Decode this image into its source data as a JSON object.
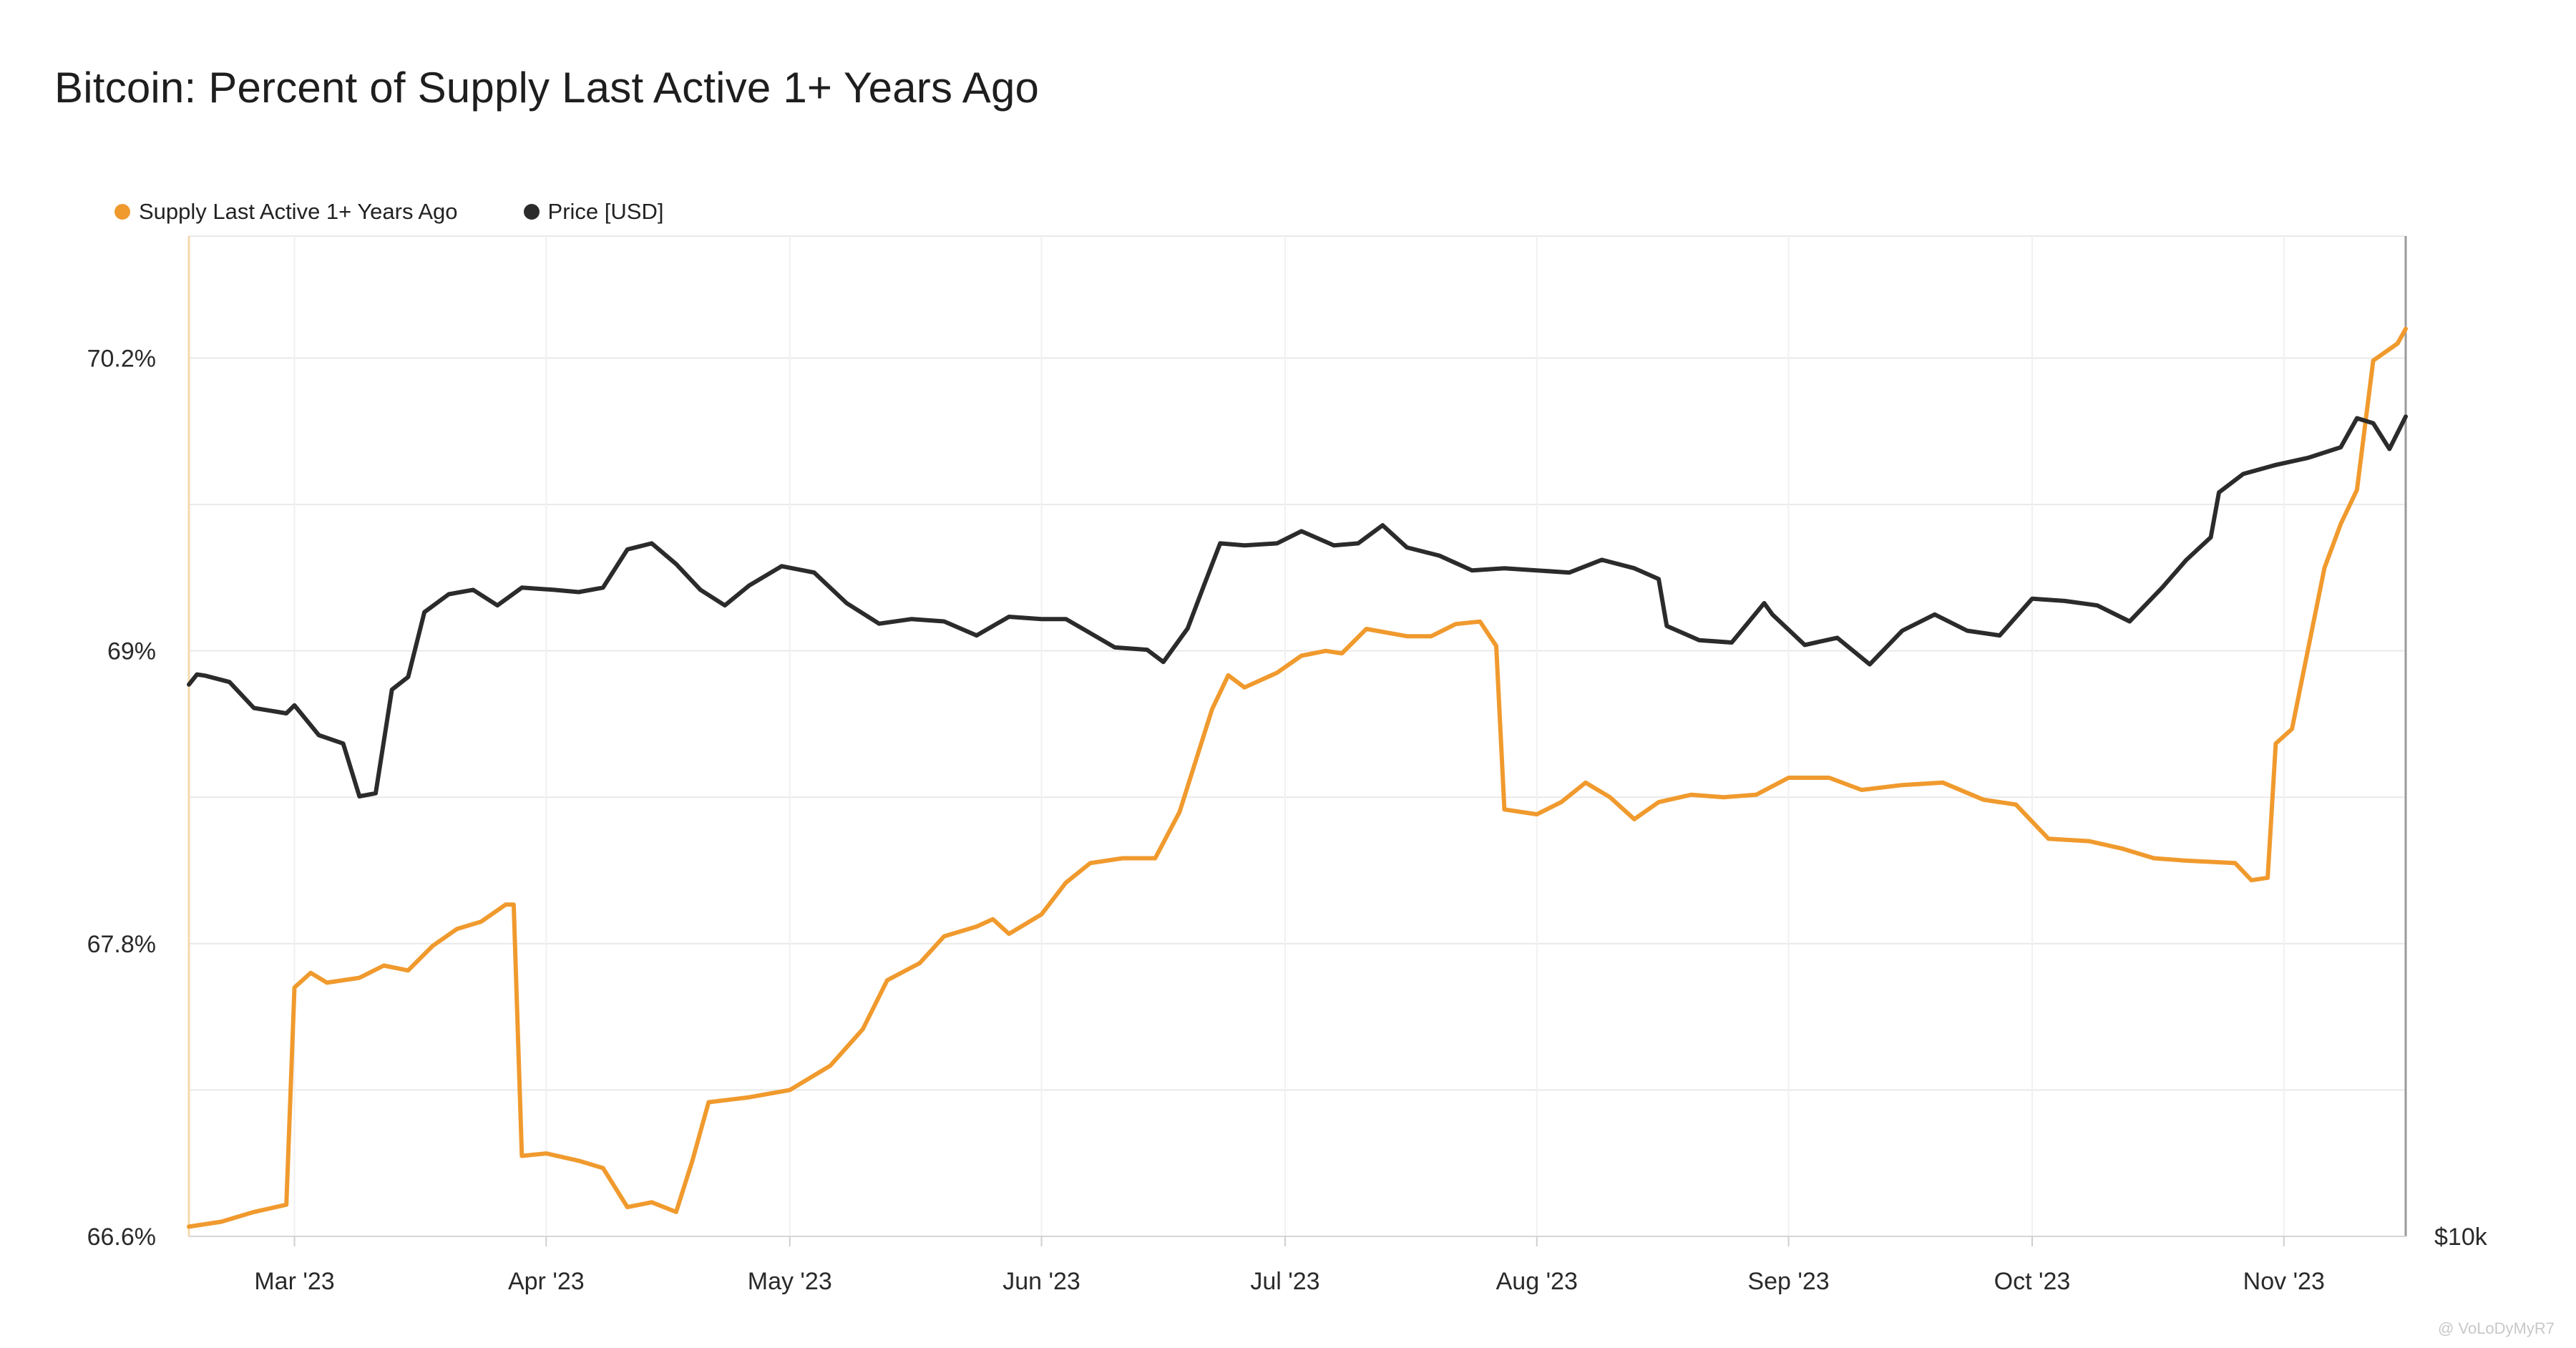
{
  "title": "Bitcoin: Percent of Supply Last Active 1+ Years Ago",
  "legend": [
    {
      "label": "Supply Last Active 1+ Years Ago",
      "color": "#f09a2e"
    },
    {
      "label": "Price [USD]",
      "color": "#2b2b2b"
    }
  ],
  "watermark": "@ VoLoDyMyR7",
  "chart_data": {
    "type": "line",
    "x_axis": {
      "type": "date",
      "range": [
        "2023-02-16",
        "2023-11-16"
      ],
      "tick_labels": [
        {
          "date": "2023-03-01",
          "label": "Mar '23"
        },
        {
          "date": "2023-04-01",
          "label": "Apr '23"
        },
        {
          "date": "2023-05-01",
          "label": "May '23"
        },
        {
          "date": "2023-06-01",
          "label": "Jun '23"
        },
        {
          "date": "2023-07-01",
          "label": "Jul '23"
        },
        {
          "date": "2023-08-01",
          "label": "Aug '23"
        },
        {
          "date": "2023-09-01",
          "label": "Sep '23"
        },
        {
          "date": "2023-10-01",
          "label": "Oct '23"
        },
        {
          "date": "2023-11-01",
          "label": "Nov '23"
        }
      ]
    },
    "y_left": {
      "unit": "%",
      "range": [
        66.6,
        70.7
      ],
      "tick_labels": [
        {
          "value": 66.6,
          "label": "66.6%"
        },
        {
          "value": 67.8,
          "label": "67.8%"
        },
        {
          "value": 69.0,
          "label": "69%"
        },
        {
          "value": 70.2,
          "label": "70.2%"
        }
      ]
    },
    "y_right": {
      "scale": "log",
      "range": [
        10000,
        50000
      ],
      "tick_labels": [
        {
          "value": 10000,
          "label": "$10k"
        }
      ]
    },
    "grid": true,
    "series": [
      {
        "name": "Supply Last Active 1+ Years Ago",
        "axis": "left",
        "color": "#f09a2e",
        "points": [
          [
            "2023-02-16",
            66.64
          ],
          [
            "2023-02-20",
            66.66
          ],
          [
            "2023-02-24",
            66.7
          ],
          [
            "2023-02-28",
            66.73
          ],
          [
            "2023-03-01",
            67.62
          ],
          [
            "2023-03-03",
            67.68
          ],
          [
            "2023-03-05",
            67.64
          ],
          [
            "2023-03-09",
            67.66
          ],
          [
            "2023-03-12",
            67.71
          ],
          [
            "2023-03-15",
            67.69
          ],
          [
            "2023-03-18",
            67.79
          ],
          [
            "2023-03-21",
            67.86
          ],
          [
            "2023-03-24",
            67.89
          ],
          [
            "2023-03-27",
            67.96
          ],
          [
            "2023-03-28",
            67.96
          ],
          [
            "2023-03-29",
            66.93
          ],
          [
            "2023-04-01",
            66.94
          ],
          [
            "2023-04-05",
            66.91
          ],
          [
            "2023-04-08",
            66.88
          ],
          [
            "2023-04-11",
            66.72
          ],
          [
            "2023-04-14",
            66.74
          ],
          [
            "2023-04-17",
            66.7
          ],
          [
            "2023-04-19",
            66.91
          ],
          [
            "2023-04-21",
            67.15
          ],
          [
            "2023-04-26",
            67.17
          ],
          [
            "2023-05-01",
            67.2
          ],
          [
            "2023-05-06",
            67.3
          ],
          [
            "2023-05-10",
            67.45
          ],
          [
            "2023-05-13",
            67.65
          ],
          [
            "2023-05-17",
            67.72
          ],
          [
            "2023-05-20",
            67.83
          ],
          [
            "2023-05-24",
            67.87
          ],
          [
            "2023-05-26",
            67.9
          ],
          [
            "2023-05-28",
            67.84
          ],
          [
            "2023-06-01",
            67.92
          ],
          [
            "2023-06-04",
            68.05
          ],
          [
            "2023-06-07",
            68.13
          ],
          [
            "2023-06-11",
            68.15
          ],
          [
            "2023-06-15",
            68.15
          ],
          [
            "2023-06-18",
            68.34
          ],
          [
            "2023-06-22",
            68.76
          ],
          [
            "2023-06-24",
            68.9
          ],
          [
            "2023-06-26",
            68.85
          ],
          [
            "2023-06-30",
            68.91
          ],
          [
            "2023-07-03",
            68.98
          ],
          [
            "2023-07-06",
            69.0
          ],
          [
            "2023-07-08",
            68.99
          ],
          [
            "2023-07-11",
            69.09
          ],
          [
            "2023-07-16",
            69.06
          ],
          [
            "2023-07-19",
            69.06
          ],
          [
            "2023-07-22",
            69.11
          ],
          [
            "2023-07-25",
            69.12
          ],
          [
            "2023-07-27",
            69.02
          ],
          [
            "2023-07-28",
            68.35
          ],
          [
            "2023-08-01",
            68.33
          ],
          [
            "2023-08-04",
            68.38
          ],
          [
            "2023-08-07",
            68.46
          ],
          [
            "2023-08-10",
            68.4
          ],
          [
            "2023-08-13",
            68.31
          ],
          [
            "2023-08-16",
            68.38
          ],
          [
            "2023-08-20",
            68.41
          ],
          [
            "2023-08-24",
            68.4
          ],
          [
            "2023-08-28",
            68.41
          ],
          [
            "2023-09-01",
            68.48
          ],
          [
            "2023-09-06",
            68.48
          ],
          [
            "2023-09-10",
            68.43
          ],
          [
            "2023-09-15",
            68.45
          ],
          [
            "2023-09-20",
            68.46
          ],
          [
            "2023-09-25",
            68.39
          ],
          [
            "2023-09-29",
            68.37
          ],
          [
            "2023-10-03",
            68.23
          ],
          [
            "2023-10-08",
            68.22
          ],
          [
            "2023-10-12",
            68.19
          ],
          [
            "2023-10-16",
            68.15
          ],
          [
            "2023-10-20",
            68.14
          ],
          [
            "2023-10-26",
            68.13
          ],
          [
            "2023-10-28",
            68.06
          ],
          [
            "2023-10-30",
            68.07
          ],
          [
            "2023-10-31",
            68.62
          ],
          [
            "2023-11-02",
            68.68
          ],
          [
            "2023-11-04",
            69.01
          ],
          [
            "2023-11-06",
            69.34
          ],
          [
            "2023-11-08",
            69.52
          ],
          [
            "2023-11-10",
            69.66
          ],
          [
            "2023-11-12",
            70.19
          ],
          [
            "2023-11-15",
            70.26
          ],
          [
            "2023-11-16",
            70.32
          ]
        ]
      },
      {
        "name": "Price [USD]",
        "axis": "right",
        "color": "#2b2b2b",
        "points": [
          [
            "2023-02-16",
            24300
          ],
          [
            "2023-02-17",
            24700
          ],
          [
            "2023-02-18",
            24650
          ],
          [
            "2023-02-21",
            24400
          ],
          [
            "2023-02-24",
            23400
          ],
          [
            "2023-02-28",
            23200
          ],
          [
            "2023-03-01",
            23500
          ],
          [
            "2023-03-04",
            22400
          ],
          [
            "2023-03-07",
            22100
          ],
          [
            "2023-03-09",
            20300
          ],
          [
            "2023-03-11",
            20400
          ],
          [
            "2023-03-13",
            24100
          ],
          [
            "2023-03-15",
            24600
          ],
          [
            "2023-03-17",
            27300
          ],
          [
            "2023-03-20",
            28100
          ],
          [
            "2023-03-23",
            28300
          ],
          [
            "2023-03-26",
            27600
          ],
          [
            "2023-03-29",
            28400
          ],
          [
            "2023-04-02",
            28300
          ],
          [
            "2023-04-05",
            28200
          ],
          [
            "2023-04-08",
            28400
          ],
          [
            "2023-04-11",
            30200
          ],
          [
            "2023-04-14",
            30500
          ],
          [
            "2023-04-17",
            29500
          ],
          [
            "2023-04-20",
            28300
          ],
          [
            "2023-04-23",
            27600
          ],
          [
            "2023-04-26",
            28500
          ],
          [
            "2023-04-30",
            29400
          ],
          [
            "2023-05-04",
            29100
          ],
          [
            "2023-05-08",
            27700
          ],
          [
            "2023-05-12",
            26800
          ],
          [
            "2023-05-16",
            27000
          ],
          [
            "2023-05-20",
            26900
          ],
          [
            "2023-05-24",
            26300
          ],
          [
            "2023-05-28",
            27100
          ],
          [
            "2023-06-01",
            27000
          ],
          [
            "2023-06-04",
            27000
          ],
          [
            "2023-06-07",
            26400
          ],
          [
            "2023-06-10",
            25800
          ],
          [
            "2023-06-14",
            25700
          ],
          [
            "2023-06-16",
            25200
          ],
          [
            "2023-06-19",
            26600
          ],
          [
            "2023-06-21",
            28500
          ],
          [
            "2023-06-23",
            30500
          ],
          [
            "2023-06-26",
            30400
          ],
          [
            "2023-06-30",
            30500
          ],
          [
            "2023-07-03",
            31100
          ],
          [
            "2023-07-07",
            30400
          ],
          [
            "2023-07-10",
            30500
          ],
          [
            "2023-07-13",
            31400
          ],
          [
            "2023-07-16",
            30300
          ],
          [
            "2023-07-20",
            29900
          ],
          [
            "2023-07-24",
            29200
          ],
          [
            "2023-07-28",
            29300
          ],
          [
            "2023-08-01",
            29200
          ],
          [
            "2023-08-05",
            29100
          ],
          [
            "2023-08-09",
            29700
          ],
          [
            "2023-08-13",
            29300
          ],
          [
            "2023-08-16",
            28800
          ],
          [
            "2023-08-17",
            26700
          ],
          [
            "2023-08-21",
            26100
          ],
          [
            "2023-08-25",
            26000
          ],
          [
            "2023-08-29",
            27700
          ],
          [
            "2023-08-30",
            27200
          ],
          [
            "2023-09-03",
            25900
          ],
          [
            "2023-09-07",
            26200
          ],
          [
            "2023-09-11",
            25100
          ],
          [
            "2023-09-15",
            26500
          ],
          [
            "2023-09-19",
            27200
          ],
          [
            "2023-09-23",
            26500
          ],
          [
            "2023-09-27",
            26300
          ],
          [
            "2023-10-01",
            27900
          ],
          [
            "2023-10-05",
            27800
          ],
          [
            "2023-10-09",
            27600
          ],
          [
            "2023-10-13",
            26900
          ],
          [
            "2023-10-17",
            28400
          ],
          [
            "2023-10-20",
            29700
          ],
          [
            "2023-10-23",
            30800
          ],
          [
            "2023-10-24",
            33100
          ],
          [
            "2023-10-27",
            34100
          ],
          [
            "2023-10-31",
            34600
          ],
          [
            "2023-11-04",
            35000
          ],
          [
            "2023-11-08",
            35600
          ],
          [
            "2023-11-10",
            37300
          ],
          [
            "2023-11-12",
            37000
          ],
          [
            "2023-11-14",
            35500
          ],
          [
            "2023-11-16",
            37400
          ]
        ]
      }
    ]
  }
}
